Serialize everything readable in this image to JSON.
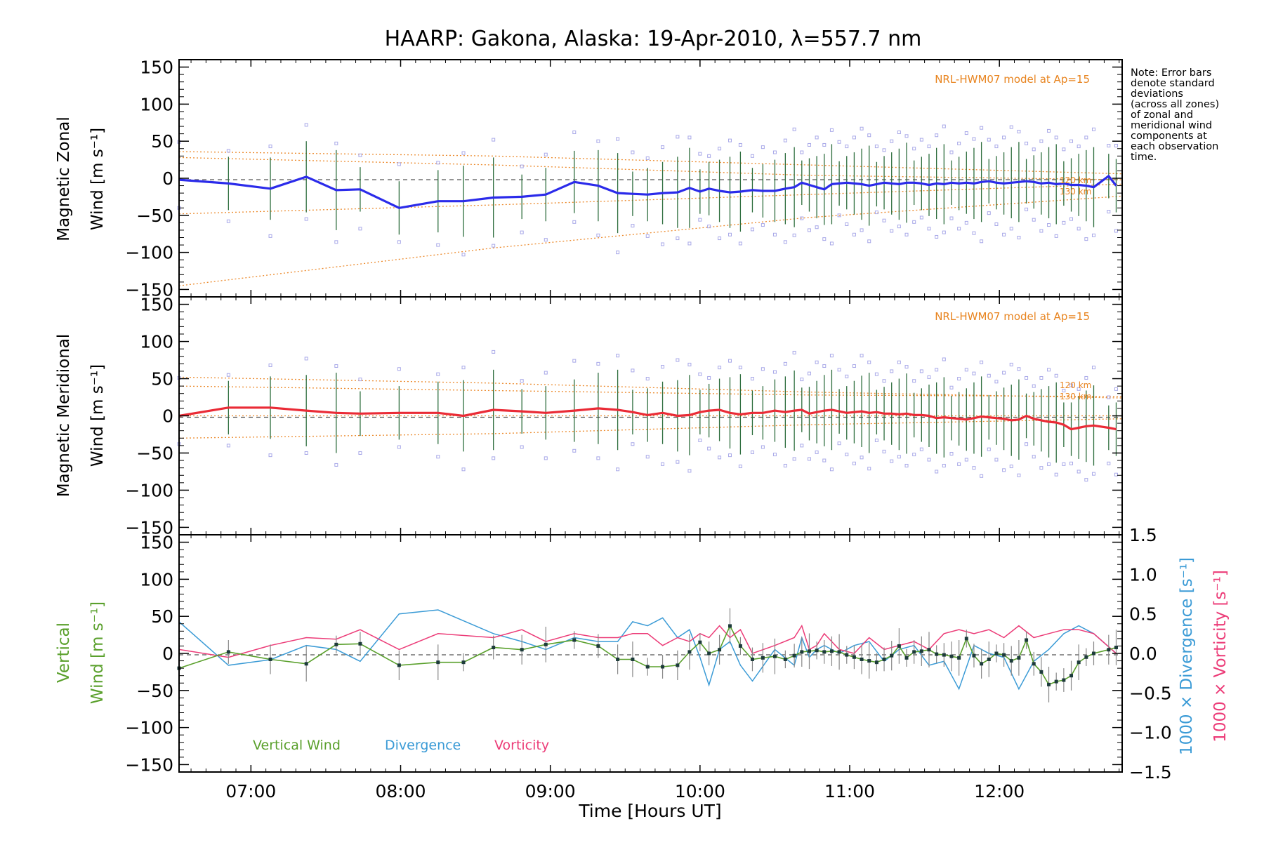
{
  "title": "HAARP: Gakona,  Alaska: 19-Apr-2010, λ=557.7 nm",
  "note_lines": [
    "Note: Error bars",
    "denote standard",
    "deviations",
    "(across all zones)",
    "of zonal and",
    "meridional wind",
    "components at",
    "each observation",
    "time."
  ],
  "model_label": "NRL-HWM07 model at Ap=15",
  "km_labels": [
    "120 km",
    "130 km"
  ],
  "xlabel": "Time [Hours UT]",
  "ylabels": {
    "zonal": [
      "Magnetic Zonal",
      "Wind [m s⁻¹]"
    ],
    "meridional": [
      "Magnetic Meridional",
      "Wind [m s⁻¹]"
    ],
    "vertical": [
      "Vertical",
      "Wind [m s⁻¹]"
    ],
    "divergence": "1000 × Divergence [s⁻¹]",
    "vorticity": "1000 × Vorticity [s⁻¹]"
  },
  "legend": [
    "Vertical Wind",
    "Divergence",
    "Vorticity"
  ],
  "colors": {
    "zonal": "#2b2bea",
    "meridional": "#ea2b36",
    "vertical": "#5aa02c",
    "divergence": "#3b9bd6",
    "vorticity": "#ec3c78",
    "model": "#ec8a2c",
    "scatter": "#a8a8e8",
    "errorbar": "#2e6e3e"
  },
  "chart_data": [
    {
      "type": "line",
      "panel": "zonal",
      "x_hours": [
        6.52,
        6.85,
        7.13,
        7.37,
        7.57,
        7.73,
        7.99,
        8.25,
        8.42,
        8.62,
        8.81,
        8.97,
        9.16,
        9.32,
        9.45,
        9.55,
        9.65,
        9.75,
        9.85,
        9.93,
        10.0,
        10.06,
        10.13,
        10.2,
        10.27,
        10.35,
        10.42,
        10.5,
        10.57,
        10.63,
        10.68,
        10.73,
        10.78,
        10.83,
        10.88,
        10.93,
        10.98,
        11.03,
        11.08,
        11.13,
        11.18,
        11.23,
        11.28,
        11.33,
        11.38,
        11.43,
        11.48,
        11.53,
        11.58,
        11.63,
        11.68,
        11.73,
        11.78,
        11.83,
        11.88,
        11.93,
        11.98,
        12.03,
        12.08,
        12.13,
        12.18,
        12.23,
        12.28,
        12.33,
        12.38,
        12.43,
        12.48,
        12.53,
        12.58,
        12.63,
        12.73,
        12.78
      ],
      "values": [
        -2,
        -7,
        -14,
        2,
        -16,
        -15,
        -40,
        -31,
        -31,
        -26,
        -25,
        -22,
        -5,
        -10,
        -20,
        -21,
        -22,
        -20,
        -19,
        -13,
        -18,
        -14,
        -17,
        -19,
        -18,
        -16,
        -17,
        -17,
        -14,
        -12,
        -6,
        -9,
        -12,
        -15,
        -8,
        -7,
        -6,
        -7,
        -8,
        -10,
        -8,
        -6,
        -7,
        -8,
        -6,
        -6,
        -7,
        -9,
        -7,
        -8,
        -6,
        -7,
        -6,
        -7,
        -5,
        -4,
        -6,
        -7,
        -6,
        -5,
        -4,
        -5,
        -7,
        -6,
        -8,
        -7,
        -9,
        -9,
        -10,
        -12,
        3,
        -10
      ],
      "model_curves": [
        [
          -145,
          -94,
          -53,
          -24
        ],
        [
          -48,
          -36,
          -22,
          -8
        ],
        [
          36,
          30,
          18,
          6
        ],
        [
          28,
          18,
          4,
          -2
        ]
      ],
      "ylim": [
        -160,
        160
      ]
    },
    {
      "type": "line",
      "panel": "meridional",
      "x_hours": [
        6.52,
        6.85,
        7.13,
        7.37,
        7.57,
        7.73,
        7.99,
        8.25,
        8.42,
        8.62,
        8.81,
        8.97,
        9.16,
        9.32,
        9.45,
        9.55,
        9.65,
        9.75,
        9.85,
        9.93,
        10.0,
        10.06,
        10.13,
        10.2,
        10.27,
        10.35,
        10.42,
        10.5,
        10.57,
        10.63,
        10.68,
        10.73,
        10.78,
        10.83,
        10.88,
        10.93,
        10.98,
        11.03,
        11.08,
        11.13,
        11.18,
        11.23,
        11.28,
        11.33,
        11.38,
        11.43,
        11.48,
        11.53,
        11.58,
        11.63,
        11.68,
        11.73,
        11.78,
        11.83,
        11.88,
        11.93,
        11.98,
        12.03,
        12.08,
        12.13,
        12.18,
        12.23,
        12.28,
        12.33,
        12.38,
        12.43,
        12.48,
        12.53,
        12.58,
        12.63,
        12.73,
        12.78
      ],
      "values": [
        0,
        11,
        11,
        7,
        4,
        3,
        4,
        4,
        0,
        8,
        6,
        4,
        7,
        10,
        8,
        5,
        1,
        4,
        0,
        1,
        5,
        7,
        8,
        4,
        2,
        4,
        4,
        7,
        5,
        7,
        8,
        3,
        5,
        7,
        8,
        6,
        4,
        5,
        6,
        4,
        5,
        3,
        3,
        2,
        3,
        1,
        1,
        0,
        -3,
        -2,
        -3,
        -4,
        -5,
        -3,
        -1,
        -2,
        -3,
        -4,
        -6,
        -5,
        0,
        -4,
        -6,
        -8,
        -9,
        -12,
        -18,
        -16,
        -14,
        -13,
        -16,
        -18
      ],
      "model_curves": [
        [
          -30,
          -24,
          -12,
          -4
        ],
        [
          0,
          0,
          0,
          0
        ],
        [
          52,
          44,
          32,
          24
        ],
        [
          40,
          34,
          28,
          26
        ]
      ],
      "ylim": [
        -160,
        160
      ]
    },
    {
      "type": "line",
      "panel": "vertical",
      "x_hours": [
        6.52,
        6.85,
        7.13,
        7.37,
        7.57,
        7.73,
        7.99,
        8.25,
        8.42,
        8.62,
        8.81,
        8.97,
        9.16,
        9.32,
        9.45,
        9.55,
        9.65,
        9.75,
        9.85,
        9.93,
        10.0,
        10.06,
        10.13,
        10.2,
        10.27,
        10.35,
        10.42,
        10.5,
        10.57,
        10.63,
        10.68,
        10.73,
        10.78,
        10.83,
        10.88,
        10.93,
        10.98,
        11.03,
        11.08,
        11.13,
        11.18,
        11.23,
        11.28,
        11.33,
        11.38,
        11.43,
        11.48,
        11.53,
        11.58,
        11.63,
        11.68,
        11.73,
        11.78,
        11.83,
        11.88,
        11.93,
        11.98,
        12.03,
        12.08,
        12.13,
        12.18,
        12.23,
        12.28,
        12.33,
        12.38,
        12.43,
        12.48,
        12.53,
        12.58,
        12.63,
        12.73,
        12.78
      ],
      "vertical_wind": [
        -20,
        2,
        -8,
        -14,
        12,
        13,
        -16,
        -12,
        -12,
        8,
        5,
        12,
        18,
        10,
        -8,
        -8,
        -18,
        -18,
        -16,
        2,
        15,
        0,
        5,
        37,
        10,
        -8,
        -6,
        -4,
        -8,
        -3,
        2,
        3,
        4,
        2,
        3,
        2,
        -2,
        -5,
        -8,
        -10,
        -12,
        -8,
        -3,
        10,
        -6,
        2,
        3,
        5,
        -1,
        -2,
        -4,
        -6,
        20,
        -3,
        -14,
        -8,
        0,
        -2,
        -10,
        -6,
        18,
        -14,
        -25,
        -42,
        -38,
        -36,
        -30,
        -12,
        -5,
        0,
        5,
        8
      ],
      "x_div": [
        6.52,
        6.85,
        7.13,
        7.37,
        7.57,
        7.73,
        7.99,
        8.25,
        8.62,
        8.81,
        8.97,
        9.16,
        9.32,
        9.45,
        9.55,
        9.65,
        9.75,
        9.85,
        9.93,
        10.0,
        10.06,
        10.13,
        10.2,
        10.27,
        10.35,
        10.5,
        10.63,
        10.68,
        10.73,
        10.78,
        10.83,
        10.88,
        10.93,
        11.03,
        11.13,
        11.23,
        11.33,
        11.43,
        11.53,
        11.63,
        11.73,
        11.83,
        11.93,
        12.03,
        12.13,
        12.23,
        12.33,
        12.43,
        12.53,
        12.63,
        12.78
      ],
      "divergence": [
        0.4,
        -0.15,
        -0.08,
        0.1,
        0.05,
        -0.1,
        0.5,
        0.55,
        0.25,
        0.15,
        0.05,
        0.2,
        0.15,
        0.15,
        0.4,
        0.35,
        0.45,
        0.2,
        0.3,
        -0.05,
        -0.4,
        0.05,
        0.15,
        -0.15,
        -0.35,
        0.05,
        -0.15,
        0.2,
        -0.05,
        0.05,
        0.1,
        0.05,
        0.0,
        0.1,
        0.15,
        -0.1,
        0.05,
        0.1,
        -0.15,
        -0.1,
        -0.45,
        0.1,
        0.0,
        -0.05,
        -0.45,
        -0.1,
        0.05,
        0.25,
        0.35,
        0.25,
        0.0
      ],
      "vorticity": [
        0.05,
        -0.05,
        0.1,
        0.2,
        0.18,
        0.3,
        0.05,
        0.25,
        0.2,
        0.3,
        0.15,
        0.25,
        0.2,
        0.2,
        0.25,
        0.25,
        0.1,
        0.2,
        0.15,
        0.25,
        0.2,
        0.35,
        0.2,
        0.3,
        0.0,
        0.1,
        0.2,
        0.35,
        0.05,
        0.1,
        0.25,
        0.15,
        0.05,
        0.0,
        0.2,
        0.05,
        0.1,
        0.15,
        0.05,
        0.25,
        0.3,
        0.25,
        0.3,
        0.2,
        0.35,
        0.2,
        0.25,
        0.3,
        0.3,
        0.25,
        0.0
      ],
      "ylim": [
        -160,
        160
      ],
      "y2lim": [
        -1.5,
        1.5
      ]
    }
  ],
  "axes": {
    "x_range_hours": [
      6.52,
      12.82
    ],
    "x_ticks": [
      "07:00",
      "08:00",
      "09:00",
      "10:00",
      "11:00",
      "12:00"
    ],
    "y_ticks": [
      150,
      100,
      50,
      0,
      -50,
      -100,
      -150
    ],
    "y2_ticks": [
      "1.5",
      "1.0",
      "0.5",
      "0.0",
      "-0.5",
      "-1.0",
      "-1.5"
    ]
  }
}
